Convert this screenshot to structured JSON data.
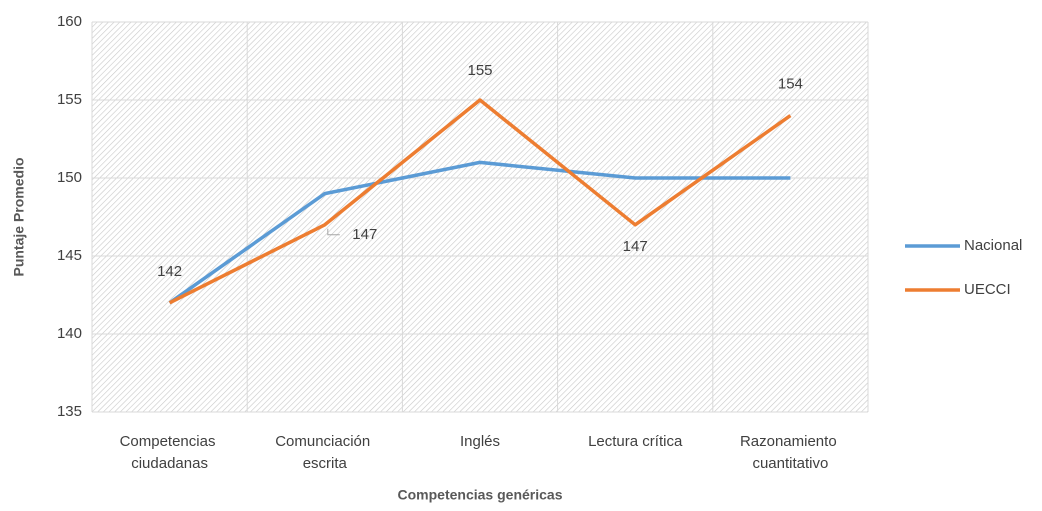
{
  "chart_data": {
    "type": "line",
    "categories": [
      "Competencias ciudadanas",
      "Comunciación escrita",
      "Inglés",
      "Lectura crítica",
      "Razonamiento cuantitativo"
    ],
    "series": [
      {
        "name": "Nacional",
        "color": "#5b9bd5",
        "values": [
          142,
          149,
          151,
          150,
          150
        ]
      },
      {
        "name": "UECCI",
        "color": "#ed7d31",
        "values": [
          142,
          147,
          155,
          147,
          154
        ],
        "data_labels": true
      }
    ],
    "ylim": [
      135,
      160
    ],
    "yticks": [
      135,
      140,
      145,
      150,
      155,
      160
    ],
    "ylabel": "Puntaje Promedio",
    "xlabel": "Competencias genéricas",
    "grid": true,
    "legend": "right"
  }
}
